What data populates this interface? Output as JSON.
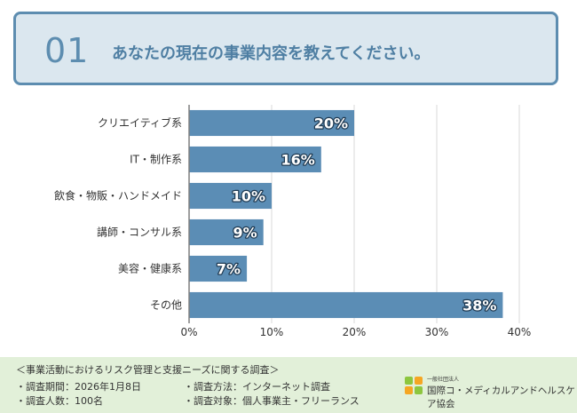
{
  "question": {
    "number": "01",
    "text": "あなたの現在の事業内容を教えてください。"
  },
  "chart_data": {
    "type": "bar",
    "orientation": "horizontal",
    "categories": [
      "クリエイティブ系",
      "IT・制作系",
      "飲食・物販・ハンドメイド",
      "講師・コンサル系",
      "美容・健康系",
      "その他"
    ],
    "values": [
      20,
      16,
      10,
      9,
      7,
      38
    ],
    "value_labels": [
      "20%",
      "16%",
      "10%",
      "9%",
      "7%",
      "38%"
    ],
    "x_ticks": [
      "0%",
      "10%",
      "20%",
      "30%",
      "40%"
    ],
    "xlim": [
      0,
      40
    ],
    "grid": true,
    "colors": {
      "bar": "#5b8db5",
      "grid": "#d9d9d9",
      "axis": "#7f7f7f"
    }
  },
  "footer": {
    "survey_title": "＜事業活動におけるリスク管理と支援ニーズに関する調査＞",
    "period": "・調査期間：2026年1月8日",
    "method": "・調査方法：インターネット調査",
    "count": "・調査人数：100名",
    "target": "・調査対象：個人事業主・フリーランス",
    "org_type": "一般社団法人",
    "org_name": "国際コ・メディカルアンドヘルスケア協会",
    "bg_color": "#e2f0d9"
  }
}
